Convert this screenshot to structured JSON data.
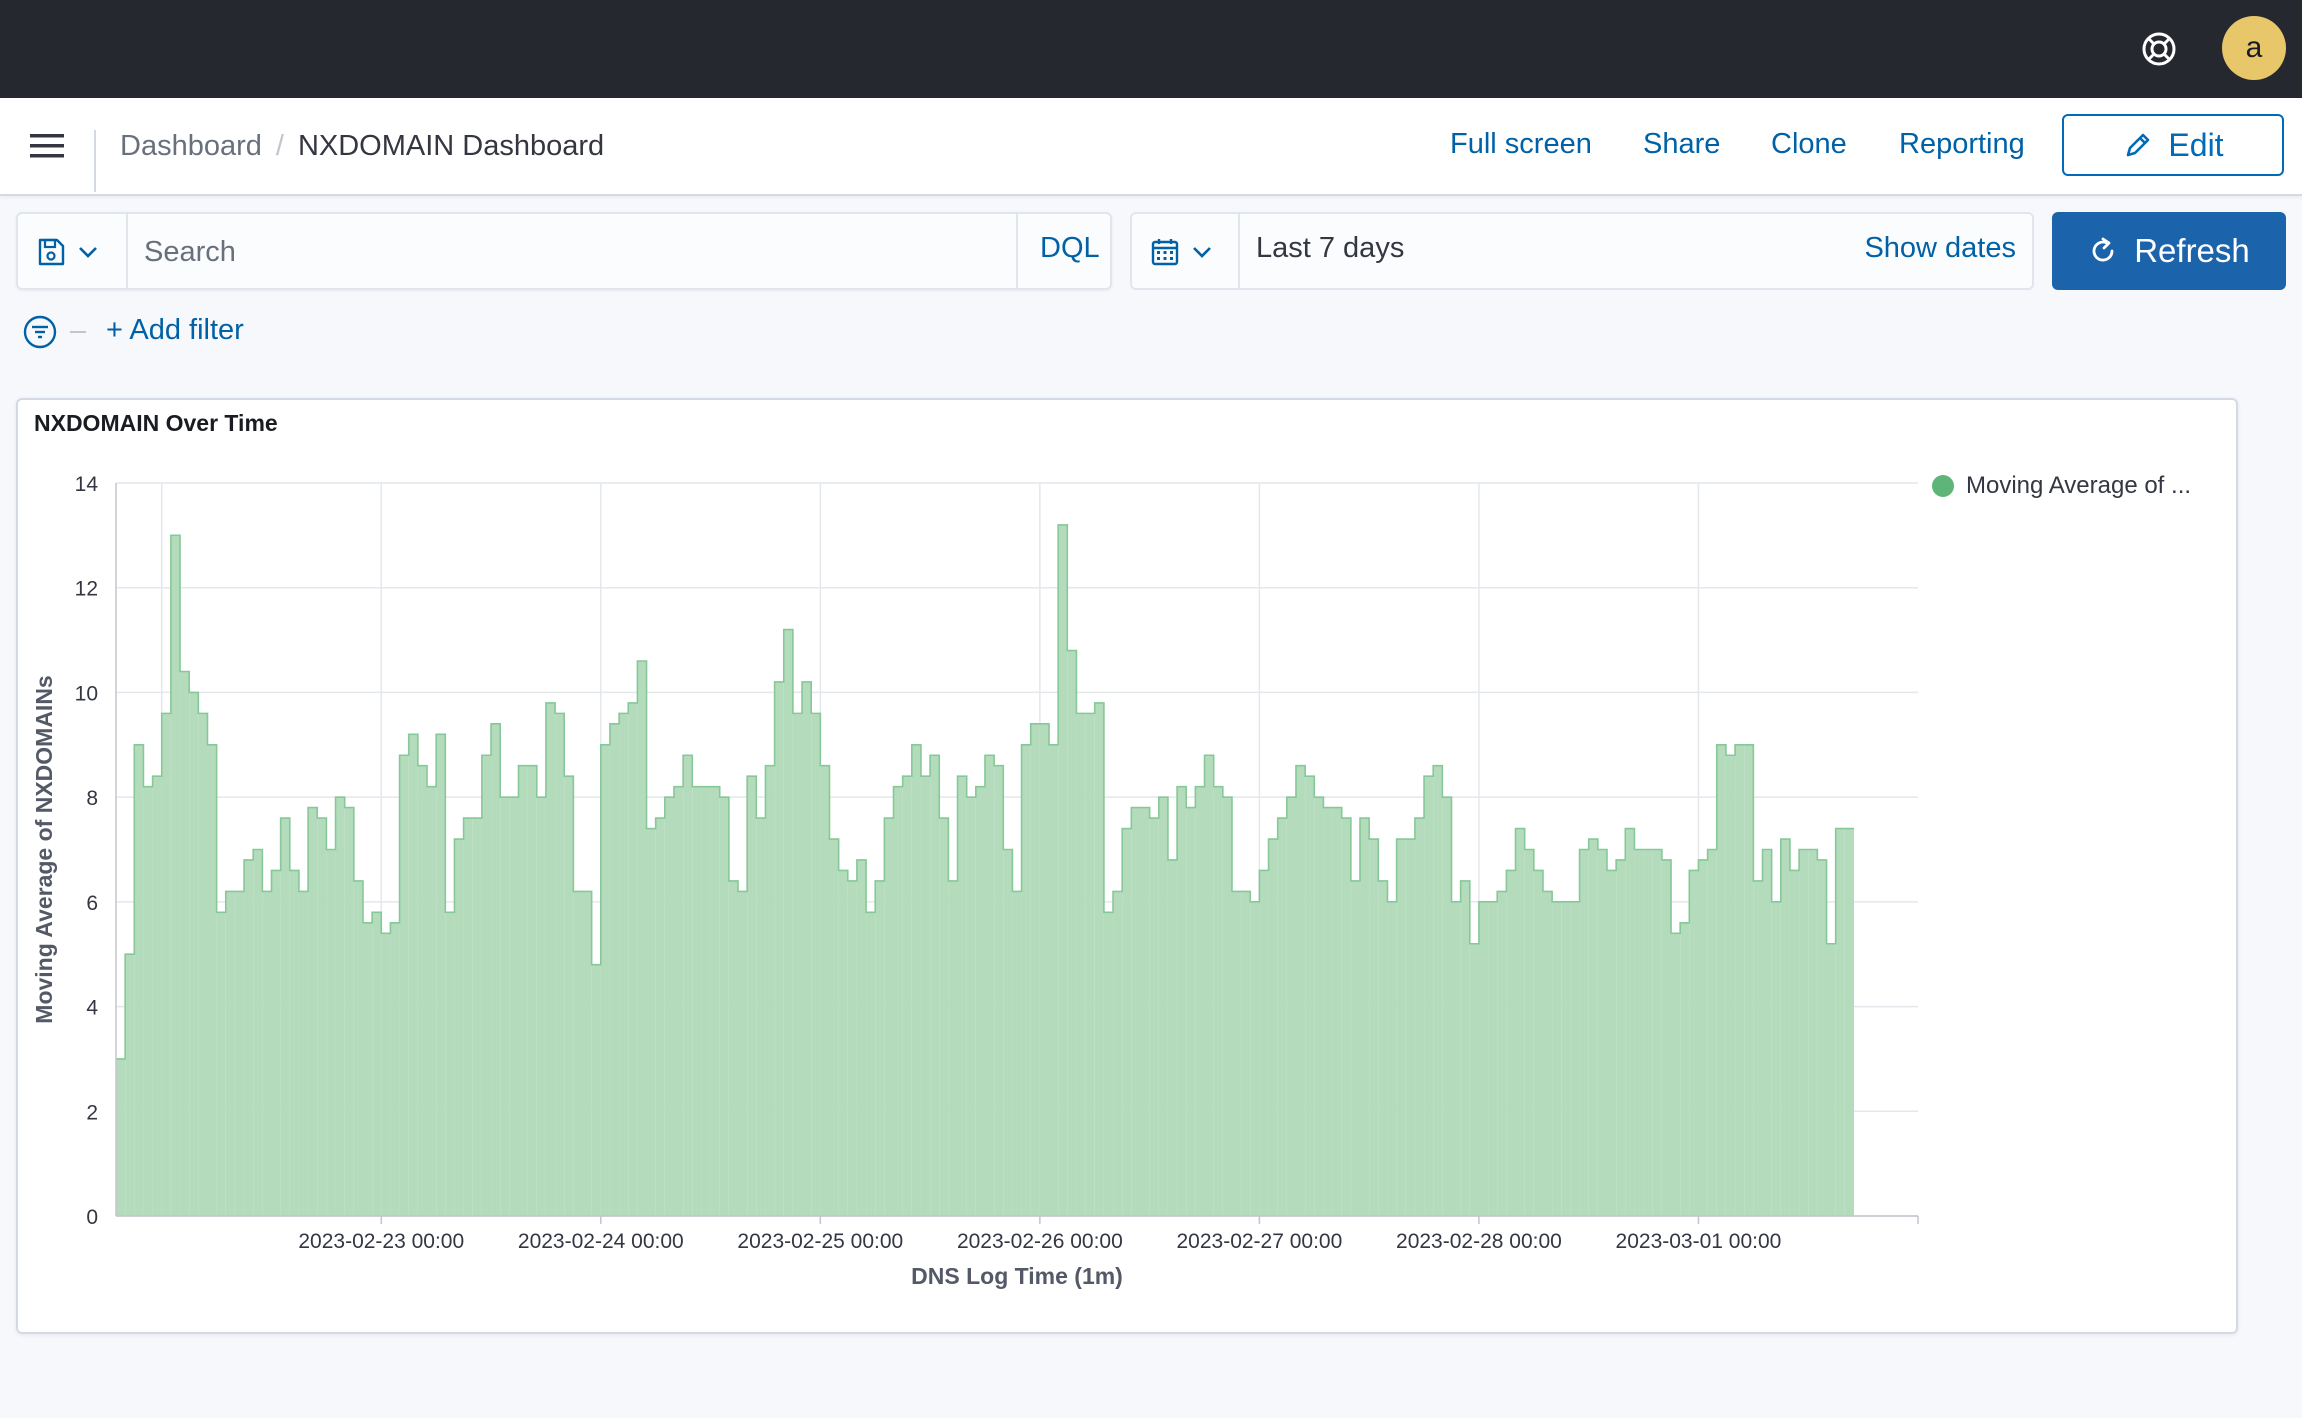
{
  "header": {
    "help_icon": "help-lifebuoy-icon",
    "avatar_initial": "a"
  },
  "nav": {
    "breadcrumb_root": "Dashboard",
    "breadcrumb_separator": "/",
    "breadcrumb_current": "NXDOMAIN Dashboard",
    "links": {
      "full_screen": "Full screen",
      "share": "Share",
      "clone": "Clone",
      "reporting": "Reporting"
    },
    "edit_label": "Edit"
  },
  "query": {
    "search_placeholder": "Search",
    "language": "DQL",
    "date_range": "Last 7 days",
    "show_dates": "Show dates",
    "refresh_label": "Refresh",
    "add_filter": "+ Add filter"
  },
  "colors": {
    "accent": "#0061a6",
    "bar_fill": "#b4dcbc",
    "bar_stroke": "#86c897",
    "legend_dot": "#5fb47a",
    "topbar": "#25282f"
  },
  "panel": {
    "title": "NXDOMAIN Over Time"
  },
  "chart_data": {
    "type": "area",
    "title": "NXDOMAIN Over Time",
    "xlabel": "DNS Log Time (1m)",
    "ylabel": "Moving Average of NXDOMAINs",
    "ylim": [
      0,
      14
    ],
    "yticks": [
      0,
      2,
      4,
      6,
      8,
      10,
      12,
      14
    ],
    "x_range": [
      "2023-02-21 19:00",
      "2023-03-02 00:00"
    ],
    "xticks": [
      "2023-02-23 00:00",
      "2023-02-24 00:00",
      "2023-02-25 00:00",
      "2023-02-26 00:00",
      "2023-02-27 00:00",
      "2023-02-28 00:00",
      "2023-03-01 00:00"
    ],
    "grid": true,
    "legend_position": "top-right",
    "series": [
      {
        "name": "Moving Average of ...",
        "step_hours": 1,
        "start": "2023-02-21 19:00",
        "values": [
          3.0,
          5.0,
          9.0,
          8.2,
          8.4,
          9.6,
          13.0,
          10.4,
          10.0,
          9.6,
          9.0,
          5.8,
          6.2,
          6.2,
          6.8,
          7.0,
          6.2,
          6.6,
          7.6,
          6.6,
          6.2,
          7.8,
          7.6,
          7.0,
          8.0,
          7.8,
          6.4,
          5.6,
          5.8,
          5.4,
          5.6,
          8.8,
          9.2,
          8.6,
          8.2,
          9.2,
          5.8,
          7.2,
          7.6,
          7.6,
          8.8,
          9.4,
          8.0,
          8.0,
          8.6,
          8.6,
          8.0,
          9.8,
          9.6,
          8.4,
          6.2,
          6.2,
          4.8,
          9.0,
          9.4,
          9.6,
          9.8,
          10.6,
          7.4,
          7.6,
          8.0,
          8.2,
          8.8,
          8.2,
          8.2,
          8.2,
          8.0,
          6.4,
          6.2,
          8.4,
          7.6,
          8.6,
          10.2,
          11.2,
          9.6,
          10.2,
          9.6,
          8.6,
          7.2,
          6.6,
          6.4,
          6.8,
          5.8,
          6.4,
          7.6,
          8.2,
          8.4,
          9.0,
          8.4,
          8.8,
          7.6,
          6.4,
          8.4,
          8.0,
          8.2,
          8.8,
          8.6,
          7.0,
          6.2,
          9.0,
          9.4,
          9.4,
          9.0,
          13.2,
          10.8,
          9.6,
          9.6,
          9.8,
          5.8,
          6.2,
          7.4,
          7.8,
          7.8,
          7.6,
          8.0,
          6.8,
          8.2,
          7.8,
          8.2,
          8.8,
          8.2,
          8.0,
          6.2,
          6.2,
          6.0,
          6.6,
          7.2,
          7.6,
          8.0,
          8.6,
          8.4,
          8.0,
          7.8,
          7.8,
          7.6,
          6.4,
          7.6,
          7.2,
          6.4,
          6.0,
          7.2,
          7.2,
          7.6,
          8.4,
          8.6,
          8.0,
          6.0,
          6.4,
          5.2,
          6.0,
          6.0,
          6.2,
          6.6,
          7.4,
          7.0,
          6.6,
          6.2,
          6.0,
          6.0,
          6.0,
          7.0,
          7.2,
          7.0,
          6.6,
          6.8,
          7.4,
          7.0,
          7.0,
          7.0,
          6.8,
          5.4,
          5.6,
          6.6,
          6.8,
          7.0,
          9.0,
          8.8,
          9.0,
          9.0,
          6.4,
          7.0,
          6.0,
          7.2,
          6.6,
          7.0,
          7.0,
          6.8,
          5.2,
          7.4,
          7.4
        ]
      }
    ]
  }
}
